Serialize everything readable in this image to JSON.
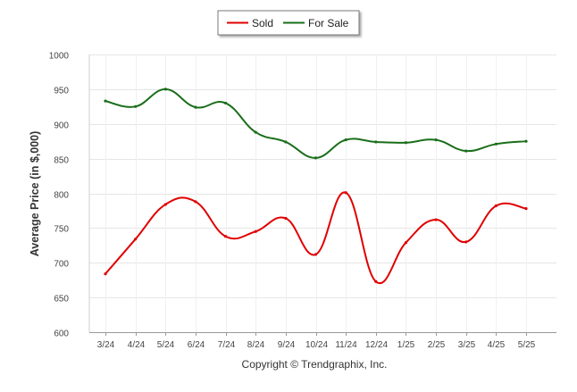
{
  "chart_data": {
    "type": "line",
    "title": "",
    "xlabel": "",
    "ylabel": "Average Price (in $,000)",
    "footer": "Copyright © Trendgraphix, Inc.",
    "categories": [
      "3/24",
      "4/24",
      "5/24",
      "6/24",
      "7/24",
      "8/24",
      "9/24",
      "10/24",
      "11/24",
      "12/24",
      "1/25",
      "2/25",
      "3/25",
      "4/25",
      "5/25"
    ],
    "ylim": [
      600,
      1000
    ],
    "yticks": [
      600,
      650,
      700,
      750,
      800,
      850,
      900,
      950,
      1000
    ],
    "grid": true,
    "legend_placement": "top-center",
    "series": [
      {
        "name": "Sold",
        "color": "#e00000",
        "values": [
          684,
          734,
          784,
          788,
          738,
          745,
          764,
          712,
          801,
          673,
          729,
          762,
          730,
          782,
          778
        ]
      },
      {
        "name": "For Sale",
        "color": "#1a6e1a",
        "values": [
          933,
          925,
          950,
          924,
          930,
          888,
          874,
          851,
          877,
          874,
          873,
          877,
          861,
          871,
          875
        ]
      }
    ]
  }
}
